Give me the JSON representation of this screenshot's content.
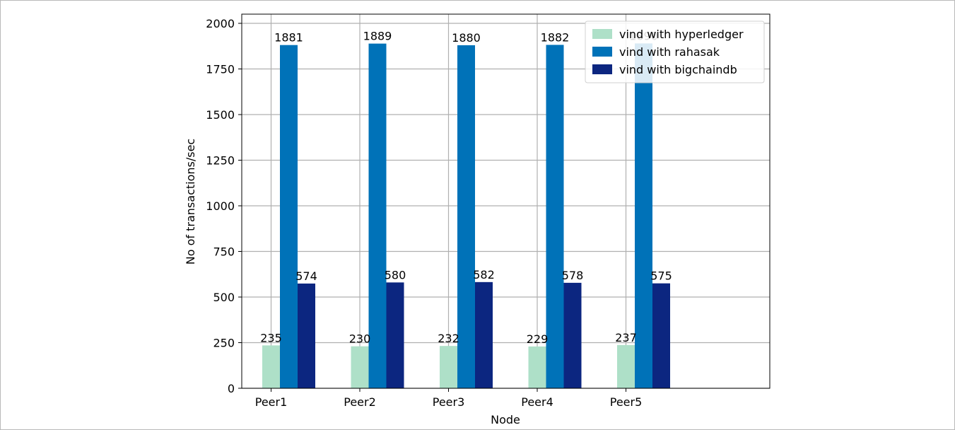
{
  "chart_data": {
    "type": "bar",
    "categories": [
      "Peer1",
      "Peer2",
      "Peer3",
      "Peer4",
      "Peer5"
    ],
    "series": [
      {
        "name": "vind with hyperledger",
        "values": [
          235,
          230,
          232,
          229,
          237
        ],
        "color": "#aee0c8"
      },
      {
        "name": "vind with rahasak",
        "values": [
          1881,
          1889,
          1880,
          1882,
          1890
        ],
        "color": "#0072b8"
      },
      {
        "name": "vind with bigchaindb",
        "values": [
          574,
          580,
          582,
          578,
          575
        ],
        "color": "#0c2680"
      }
    ],
    "xlabel": "Node",
    "ylabel": "No of transactions/sec",
    "ylim": [
      0,
      2050
    ],
    "y_ticks": [
      0,
      250,
      500,
      750,
      1000,
      1250,
      1500,
      1750,
      2000
    ],
    "grid": true,
    "legend_position": "top-right"
  }
}
